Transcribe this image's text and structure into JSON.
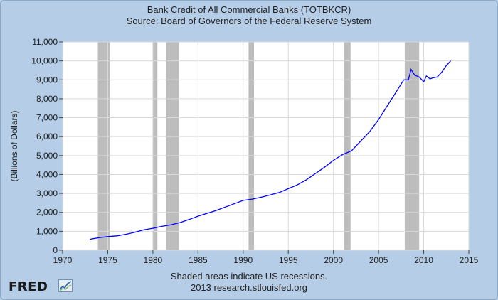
{
  "chart_data": {
    "type": "line",
    "title": "Bank Credit of All Commercial Banks (TOTBKCR)",
    "subtitle": "Source: Board of Governors of the Federal Reserve System",
    "ylabel": "(Billions of Dollars)",
    "xlabel": "",
    "xlim": [
      1970,
      2015
    ],
    "ylim": [
      0,
      11000
    ],
    "x_ticks": [
      1970,
      1975,
      1980,
      1985,
      1990,
      1995,
      2000,
      2005,
      2010,
      2015
    ],
    "x_tick_labels": [
      "1970",
      "1975",
      "1980",
      "1985",
      "1990",
      "1995",
      "2000",
      "2005",
      "2010",
      "2015"
    ],
    "y_ticks": [
      0,
      1000,
      2000,
      3000,
      4000,
      5000,
      6000,
      7000,
      8000,
      9000,
      10000,
      11000
    ],
    "y_tick_labels": [
      "0",
      "1,000",
      "2,000",
      "3,000",
      "4,000",
      "5,000",
      "6,000",
      "7,000",
      "8,000",
      "9,000",
      "10,000",
      "11,000"
    ],
    "grid": true,
    "series_color": "#0000ff",
    "recession_color": "#bdbdbd",
    "recessions": [
      [
        1973.9,
        1975.2
      ],
      [
        1980.0,
        1980.5
      ],
      [
        1981.5,
        1982.9
      ],
      [
        1990.6,
        1991.2
      ],
      [
        2001.2,
        2001.9
      ],
      [
        2007.9,
        2009.5
      ]
    ],
    "series": [
      {
        "x": [
          1973.0,
          1974.0,
          1975.0,
          1976.0,
          1977.0,
          1978.0,
          1979.0,
          1980.0,
          1981.0,
          1982.0,
          1983.0,
          1984.0,
          1985.0,
          1986.0,
          1987.0,
          1988.0,
          1989.0,
          1990.0,
          1991.0,
          1992.0,
          1993.0,
          1994.0,
          1995.0,
          1996.0,
          1997.0,
          1998.0,
          1999.0,
          2000.0,
          2001.0,
          2002.0,
          2003.0,
          2004.0,
          2005.0,
          2006.0,
          2007.0,
          2007.8,
          2008.3,
          2008.6,
          2009.0,
          2009.5,
          2010.0,
          2010.3,
          2010.7,
          2011.0,
          2011.5,
          2012.0,
          2012.5,
          2013.0
        ],
        "y": [
          580,
          660,
          720,
          760,
          840,
          950,
          1080,
          1160,
          1260,
          1340,
          1460,
          1620,
          1800,
          1950,
          2100,
          2280,
          2450,
          2630,
          2700,
          2800,
          2920,
          3050,
          3250,
          3450,
          3720,
          4050,
          4380,
          4750,
          5050,
          5250,
          5750,
          6250,
          6900,
          7650,
          8400,
          9000,
          9000,
          9550,
          9250,
          9150,
          8900,
          9200,
          9050,
          9100,
          9150,
          9400,
          9750,
          10000
        ]
      }
    ],
    "annotations": [
      "Shaded areas indicate US recessions.",
      "2013 research.stlouisfed.org"
    ]
  },
  "footer": {
    "note": "Shaded areas indicate US recessions.",
    "credit": "2013 research.stlouisfed.org"
  },
  "logo": {
    "text": "FRED"
  }
}
